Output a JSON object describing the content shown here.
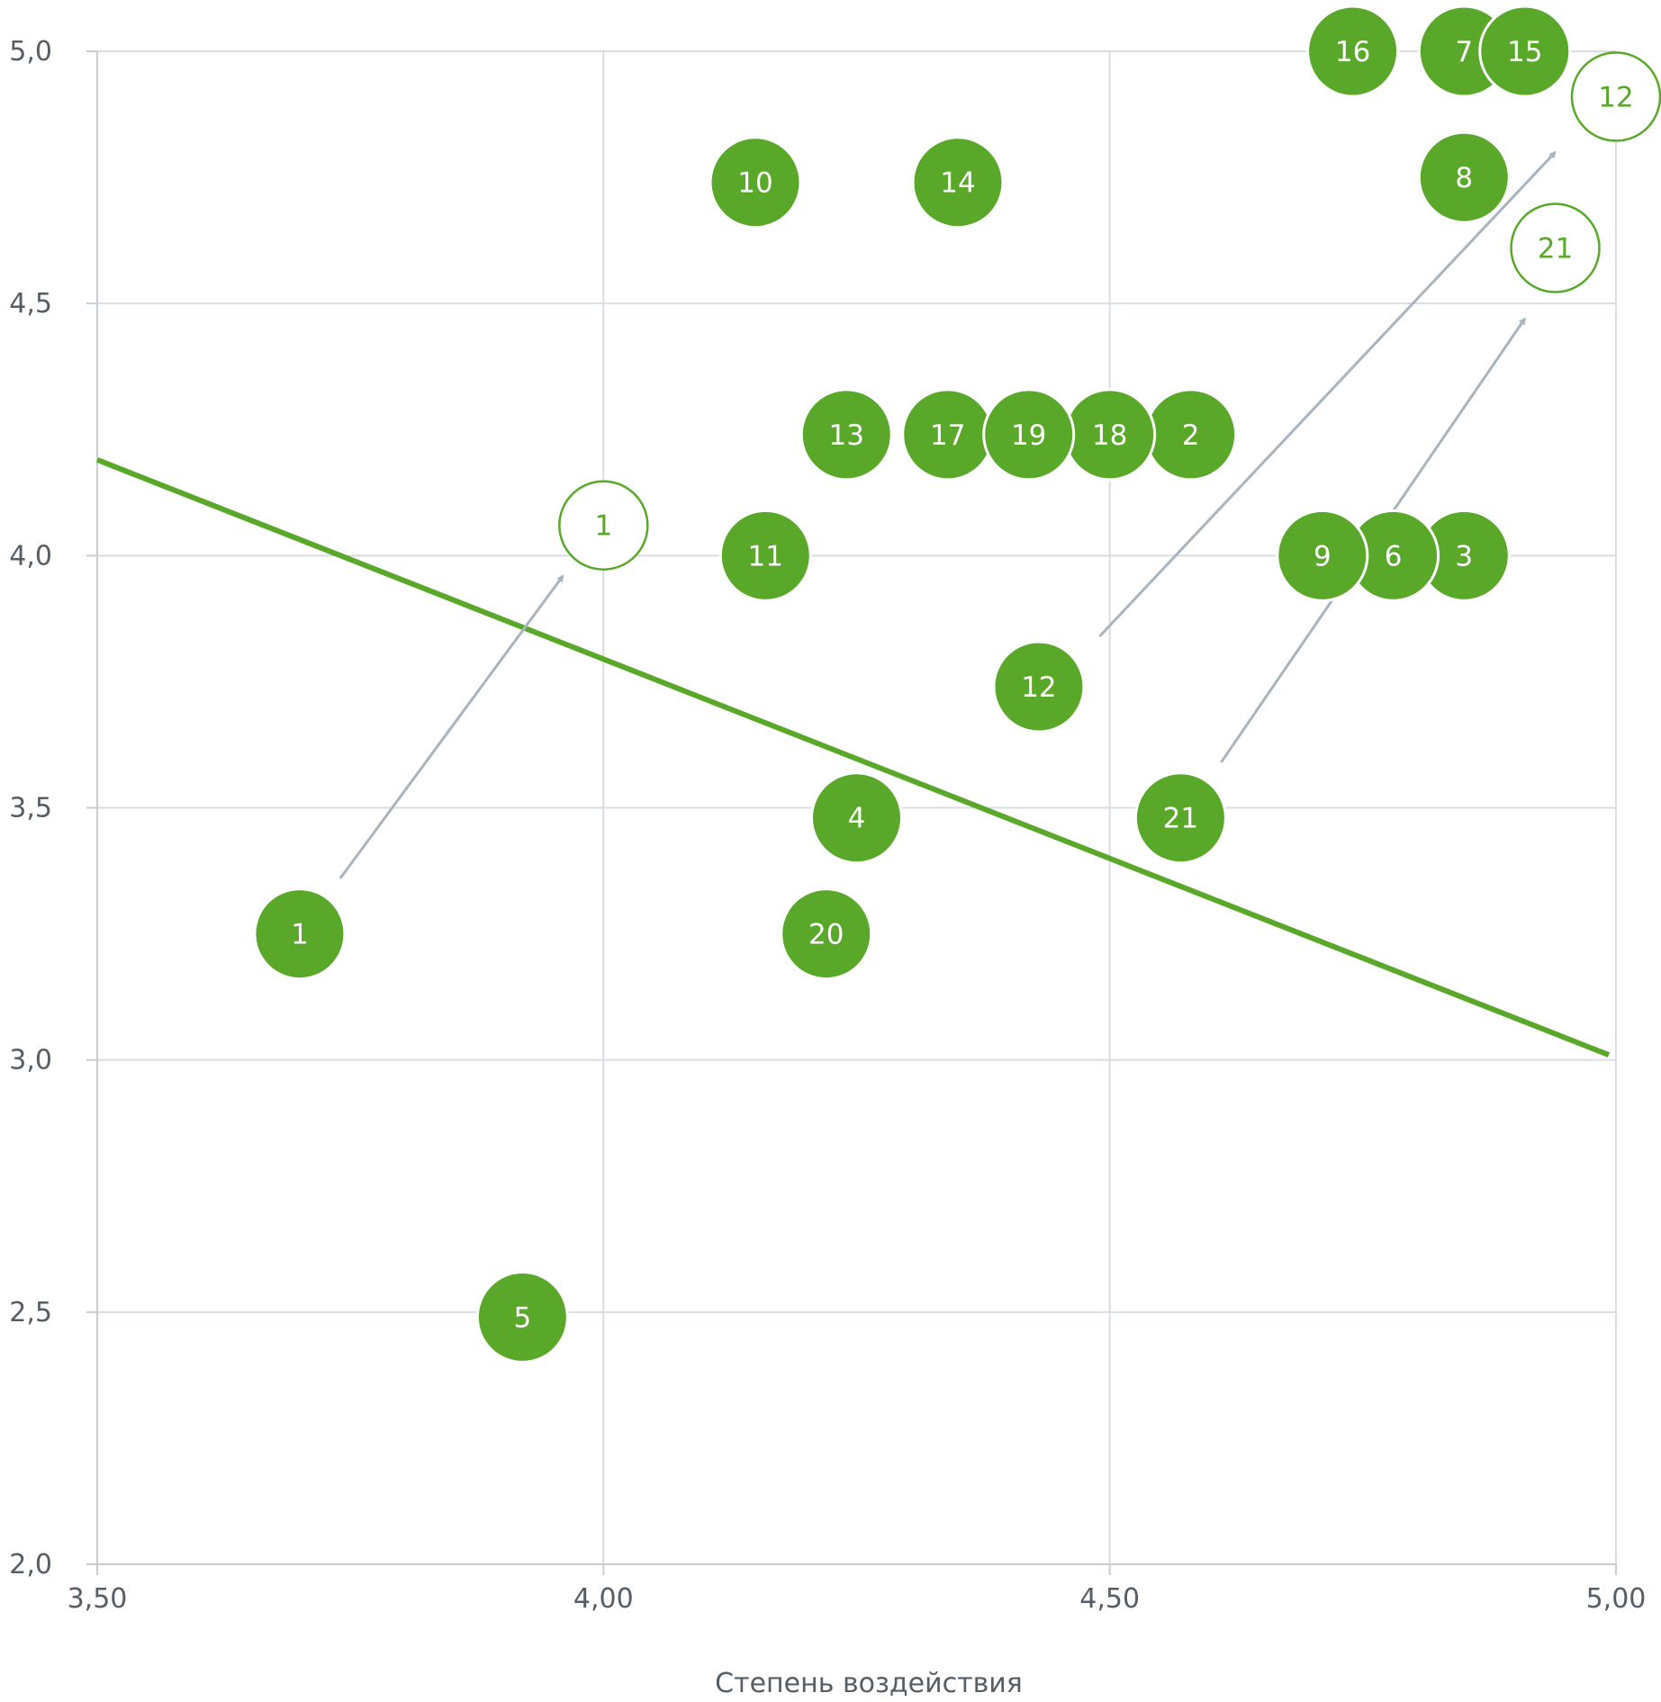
{
  "chart_data": {
    "type": "scatter",
    "title": "",
    "xlabel": "Степень воздействия",
    "ylabel": "",
    "xlim": [
      3.5,
      5.0
    ],
    "ylim": [
      2.0,
      5.0
    ],
    "grid": true,
    "x_ticks": [
      {
        "value": 3.5,
        "label": "3,50"
      },
      {
        "value": 4.0,
        "label": "4,00"
      },
      {
        "value": 4.5,
        "label": "4,50"
      },
      {
        "value": 5.0,
        "label": "5,00"
      }
    ],
    "y_ticks": [
      {
        "value": 2.0,
        "label": "2,0"
      },
      {
        "value": 2.5,
        "label": "2,5"
      },
      {
        "value": 3.0,
        "label": "3,0"
      },
      {
        "value": 3.5,
        "label": "3,5"
      },
      {
        "value": 4.0,
        "label": "4,0"
      },
      {
        "value": 4.5,
        "label": "4,5"
      },
      {
        "value": 5.0,
        "label": "5,0"
      }
    ],
    "series": [
      {
        "style": "filled",
        "points": [
          {
            "label": "1",
            "x": 3.7,
            "y": 3.25
          },
          {
            "label": "2",
            "x": 4.58,
            "y": 4.24
          },
          {
            "label": "3",
            "x": 4.85,
            "y": 4.0
          },
          {
            "label": "4",
            "x": 4.25,
            "y": 3.48
          },
          {
            "label": "5",
            "x": 3.92,
            "y": 2.49
          },
          {
            "label": "6",
            "x": 4.78,
            "y": 4.0
          },
          {
            "label": "7",
            "x": 4.85,
            "y": 5.0
          },
          {
            "label": "8",
            "x": 4.85,
            "y": 4.75
          },
          {
            "label": "9",
            "x": 4.71,
            "y": 4.0
          },
          {
            "label": "10",
            "x": 4.15,
            "y": 4.74
          },
          {
            "label": "11",
            "x": 4.16,
            "y": 4.0
          },
          {
            "label": "12",
            "x": 4.43,
            "y": 3.74
          },
          {
            "label": "13",
            "x": 4.24,
            "y": 4.24
          },
          {
            "label": "14",
            "x": 4.35,
            "y": 4.74
          },
          {
            "label": "15",
            "x": 4.91,
            "y": 5.0
          },
          {
            "label": "16",
            "x": 4.74,
            "y": 5.0
          },
          {
            "label": "17",
            "x": 4.34,
            "y": 4.24
          },
          {
            "label": "18",
            "x": 4.5,
            "y": 4.24
          },
          {
            "label": "19",
            "x": 4.42,
            "y": 4.24
          },
          {
            "label": "20",
            "x": 4.22,
            "y": 3.25
          },
          {
            "label": "21",
            "x": 4.57,
            "y": 3.48
          }
        ]
      },
      {
        "style": "outline",
        "points": [
          {
            "label": "1",
            "x": 4.0,
            "y": 4.06
          },
          {
            "label": "12",
            "x": 5.0,
            "y": 4.91
          },
          {
            "label": "21",
            "x": 4.94,
            "y": 4.61
          }
        ]
      }
    ],
    "arrows": [
      {
        "from": [
          3.74,
          3.36
        ],
        "to": [
          3.96,
          3.96
        ]
      },
      {
        "from": [
          4.49,
          3.84
        ],
        "to": [
          4.94,
          4.8
        ]
      },
      {
        "from": [
          4.61,
          3.59
        ],
        "to": [
          4.91,
          4.47
        ]
      }
    ],
    "trend_line": {
      "x": [
        3.5,
        5.0
      ],
      "y": [
        4.19,
        3.01
      ]
    },
    "colors": {
      "point_fill": "#5aa82a",
      "point_text": "#ffffff",
      "outline_text": "#5aa82a",
      "trend": "#5aa82a",
      "arrow": "#a9b4bd",
      "grid": "#d9dde2",
      "axis": "#c9cdd3",
      "tick_label": "#555e66"
    }
  }
}
